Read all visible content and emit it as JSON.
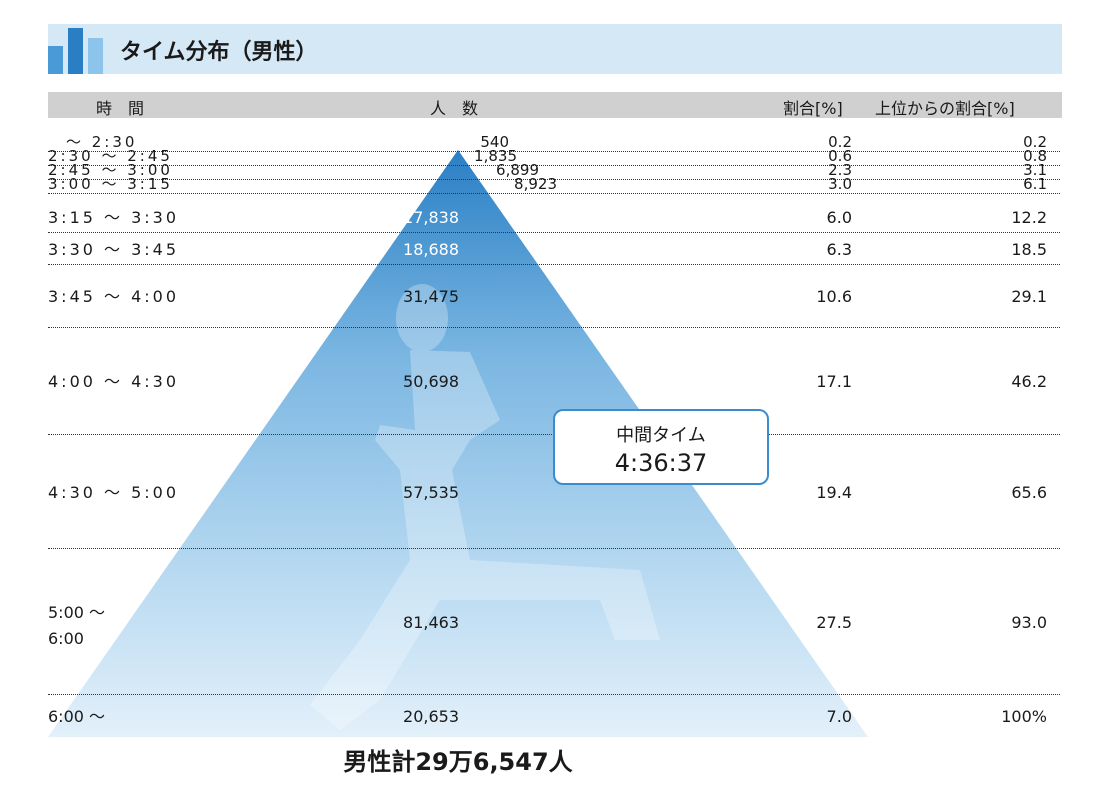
{
  "title": "タイム分布（男性）",
  "headers": {
    "time": "時　間",
    "count": "人　数",
    "pct": "割合[%]",
    "cum": "上位からの割合[%]"
  },
  "colors": {
    "pyramid_top": "#2a7fc4",
    "pyramid_bottom": "#e3f0fa",
    "title_bar": "#d5e8f5",
    "accent": "#3b8ccf"
  },
  "chart_data": {
    "type": "table",
    "columns": [
      "時　間",
      "人　数",
      "割合[%]",
      "上位からの割合[%]"
    ],
    "rows": [
      {
        "time": "　～ 2:30",
        "count": "540",
        "pct": "0.2",
        "cum": "0.2"
      },
      {
        "time": "2:30 ～ 2:45",
        "count": "1,835",
        "pct": "0.6",
        "cum": "0.8"
      },
      {
        "time": "2:45 ～ 3:00",
        "count": "6,899",
        "pct": "2.3",
        "cum": "3.1"
      },
      {
        "time": "3:00 ～ 3:15",
        "count": "8,923",
        "pct": "3.0",
        "cum": "6.1"
      },
      {
        "time": "3:15 ～ 3:30",
        "count": "17,838",
        "pct": "6.0",
        "cum": "12.2"
      },
      {
        "time": "3:30 ～ 3:45",
        "count": "18,688",
        "pct": "6.3",
        "cum": "18.5"
      },
      {
        "time": "3:45 ～ 4:00",
        "count": "31,475",
        "pct": "10.6",
        "cum": "29.1"
      },
      {
        "time": "4:00 ～ 4:30",
        "count": "50,698",
        "pct": "17.1",
        "cum": "46.2"
      },
      {
        "time": "4:30 ～ 5:00",
        "count": "57,535",
        "pct": "19.4",
        "cum": "65.6"
      },
      {
        "time": "5:00 ～\n6:00",
        "count": "81,463",
        "pct": "27.5",
        "cum": "93.0"
      },
      {
        "time": "6:00 ～",
        "count": "20,653",
        "pct": "7.0",
        "cum": "100%"
      }
    ]
  },
  "median": {
    "label": "中間タイム",
    "value": "4:36:37"
  },
  "total": "男性計29万6,547人"
}
